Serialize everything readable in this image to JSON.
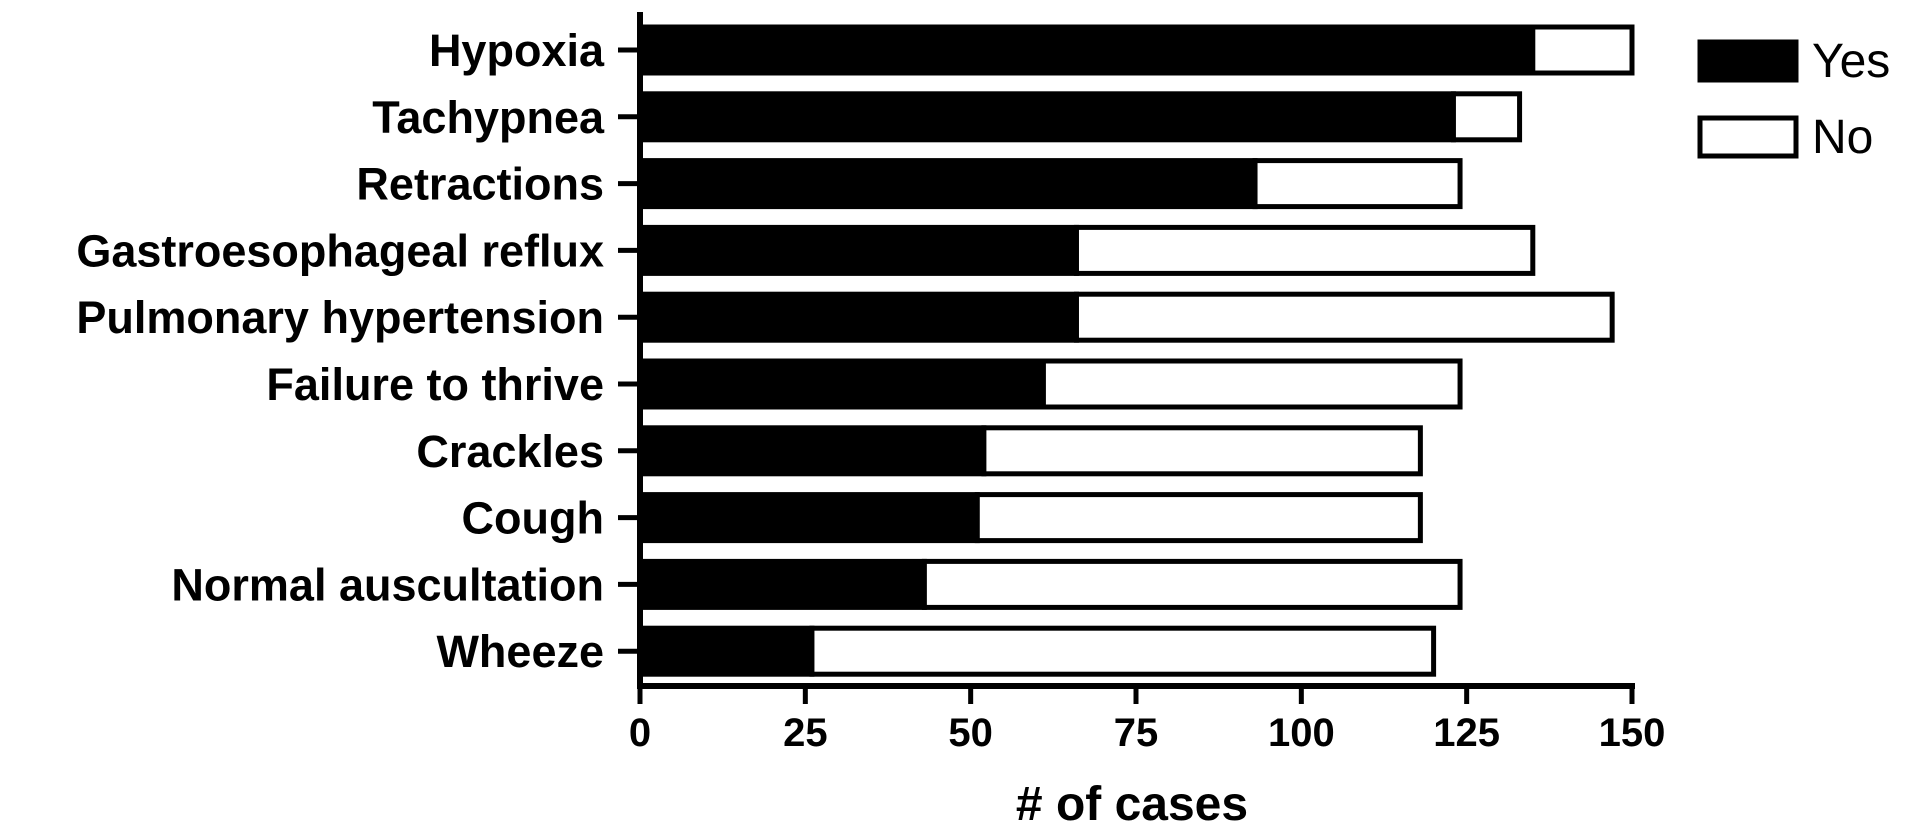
{
  "chart_data": {
    "type": "bar",
    "orientation": "horizontal",
    "stacked": true,
    "categories": [
      "Hypoxia",
      "Tachypnea",
      "Retractions",
      "Gastroesophageal reflux",
      "Pulmonary hypertension",
      "Failure to thrive",
      "Crackles",
      "Cough",
      "Normal auscultation",
      "Wheeze"
    ],
    "series": [
      {
        "name": "Yes",
        "color": "#000000",
        "values": [
          135,
          123,
          93,
          66,
          66,
          61,
          52,
          51,
          43,
          26
        ]
      },
      {
        "name": "No",
        "color": "#ffffff",
        "values": [
          15,
          10,
          31,
          69,
          81,
          63,
          66,
          67,
          81,
          94
        ]
      }
    ],
    "xlabel": "# of cases",
    "ylabel": "",
    "xlim": [
      0,
      150
    ],
    "xticks": [
      "0",
      "25",
      "50",
      "75",
      "100",
      "125",
      "150"
    ],
    "grid": false,
    "legend_position": "top-right"
  }
}
